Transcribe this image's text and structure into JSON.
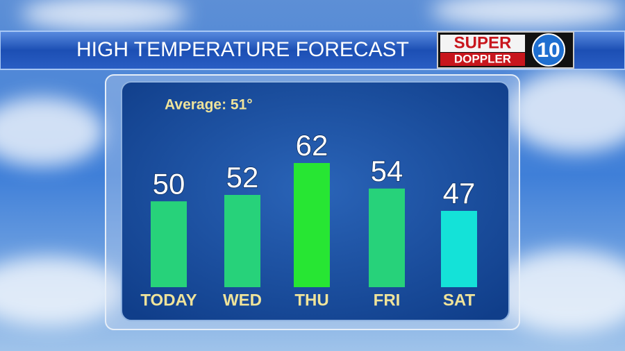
{
  "chart_data": {
    "type": "bar",
    "title": "HIGH TEMPERATURE FORECAST",
    "annotation": "Average: 51°",
    "categories": [
      "TODAY",
      "WED",
      "THU",
      "FRI",
      "SAT"
    ],
    "values": [
      50,
      52,
      62,
      54,
      47
    ],
    "colors": [
      "#27d27a",
      "#27d27a",
      "#27e633",
      "#27d27a",
      "#14e2d8"
    ]
  },
  "logo": {
    "top": "SUPER",
    "bottom": "DOPPLER",
    "number": "10"
  }
}
